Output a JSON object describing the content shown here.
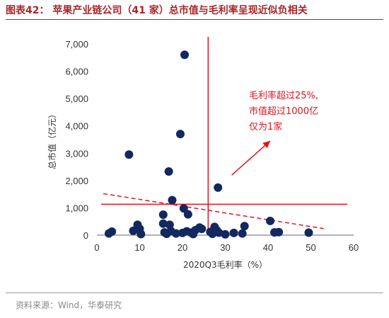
{
  "figure": {
    "title": "图表42：  苹果产业链公司（41 家）总市值与毛利率呈现近似负相关",
    "source": "资料来源：Wind，华泰研究"
  },
  "chart_data": {
    "type": "scatter",
    "xlabel": "2020Q3毛利率（%）",
    "ylabel": "总市值（亿元）",
    "xlim": [
      0,
      60
    ],
    "ylim": [
      0,
      7000
    ],
    "x_ticks": [
      "0",
      "10",
      "20",
      "30",
      "40",
      "50",
      "60"
    ],
    "y_ticks": [
      "0",
      "1,000",
      "2,000",
      "3,000",
      "4,000",
      "5,000",
      "6,000",
      "7,000"
    ],
    "grid": false,
    "points": [
      {
        "x": 2.8,
        "y": 60
      },
      {
        "x": 3.5,
        "y": 130
      },
      {
        "x": 7.5,
        "y": 2950
      },
      {
        "x": 8.5,
        "y": 160
      },
      {
        "x": 9.5,
        "y": 380
      },
      {
        "x": 10.0,
        "y": 230
      },
      {
        "x": 10.3,
        "y": 40
      },
      {
        "x": 15.5,
        "y": 750
      },
      {
        "x": 15.5,
        "y": 420
      },
      {
        "x": 15.8,
        "y": 100
      },
      {
        "x": 16.3,
        "y": 50
      },
      {
        "x": 16.8,
        "y": 2330
      },
      {
        "x": 17.0,
        "y": 380
      },
      {
        "x": 17.3,
        "y": 150
      },
      {
        "x": 17.6,
        "y": 1280
      },
      {
        "x": 18.5,
        "y": 60
      },
      {
        "x": 19.5,
        "y": 3700
      },
      {
        "x": 20.5,
        "y": 6600
      },
      {
        "x": 20.3,
        "y": 980
      },
      {
        "x": 20.0,
        "y": 80
      },
      {
        "x": 21.3,
        "y": 760
      },
      {
        "x": 21.0,
        "y": 140
      },
      {
        "x": 22.0,
        "y": 90
      },
      {
        "x": 22.5,
        "y": 40
      },
      {
        "x": 23.0,
        "y": 180
      },
      {
        "x": 24.5,
        "y": 230
      },
      {
        "x": 26.5,
        "y": 120
      },
      {
        "x": 27.0,
        "y": 50
      },
      {
        "x": 27.5,
        "y": 300
      },
      {
        "x": 28.3,
        "y": 1740
      },
      {
        "x": 28.0,
        "y": 180
      },
      {
        "x": 28.5,
        "y": 90
      },
      {
        "x": 30.0,
        "y": 30
      },
      {
        "x": 32.0,
        "y": 80
      },
      {
        "x": 34.0,
        "y": 60
      },
      {
        "x": 34.5,
        "y": 330
      },
      {
        "x": 40.5,
        "y": 520
      },
      {
        "x": 41.5,
        "y": 100
      },
      {
        "x": 42.5,
        "y": 110
      },
      {
        "x": 49.5,
        "y": 90
      },
      {
        "x": 24.0,
        "y": 280
      }
    ],
    "reference_lines": {
      "vertical_x": 26.0,
      "horizontal_y": 1130
    },
    "trendline": {
      "x": [
        1.5,
        53
      ],
      "y": [
        1520,
        240
      ]
    },
    "annotation": {
      "lines": [
        "毛利率超过25%,",
        "市值超过1000亿",
        "仅为1家"
      ],
      "arrow_from": {
        "x": 31.5,
        "y": 2200
      },
      "arrow_to": {
        "x": 40.5,
        "y": 3450
      }
    },
    "colors": {
      "point": "#12285f",
      "reference": "#e0141e",
      "trend": "#e0141e",
      "axis": "#666666",
      "title": "#a9262a"
    }
  }
}
